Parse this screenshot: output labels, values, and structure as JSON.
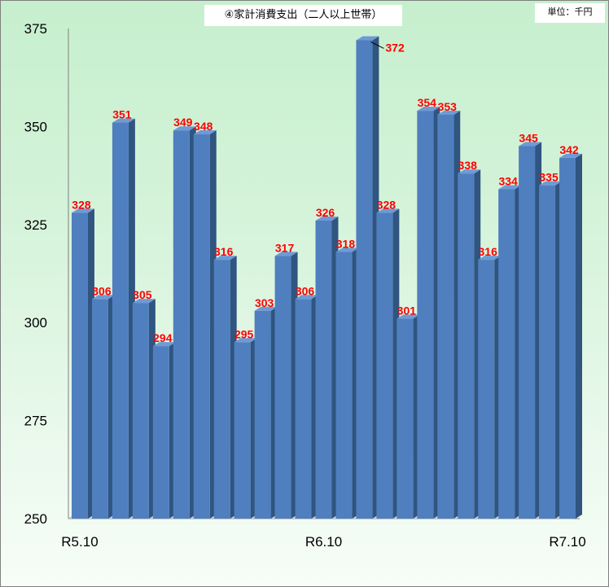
{
  "header": {
    "title": "④家計消費支出（二人以上世帯）",
    "unit": "単位：千円"
  },
  "colors": {
    "bar_front": "#4f7fbf",
    "bar_side": "#2f5580",
    "bar_top": "#6f9ad6",
    "label": "#ff0000",
    "background": "#c6efce"
  },
  "chart_data": {
    "type": "bar",
    "title": "④家計消費支出（二人以上世帯）",
    "xlabel": "",
    "ylabel": "",
    "ylim": [
      250,
      375
    ],
    "yticks": [
      250,
      275,
      300,
      325,
      350,
      375
    ],
    "xtick_labels": [
      {
        "index": 0,
        "label": "R5.10"
      },
      {
        "index": 12,
        "label": "R6.10"
      },
      {
        "index": 24,
        "label": "R7.10"
      }
    ],
    "values": [
      328,
      306,
      351,
      305,
      294,
      349,
      348,
      316,
      295,
      303,
      317,
      306,
      326,
      318,
      372,
      328,
      301,
      354,
      353,
      338,
      316,
      334,
      345,
      335,
      342
    ],
    "data_labels": true,
    "grid": false,
    "legend": "none"
  }
}
